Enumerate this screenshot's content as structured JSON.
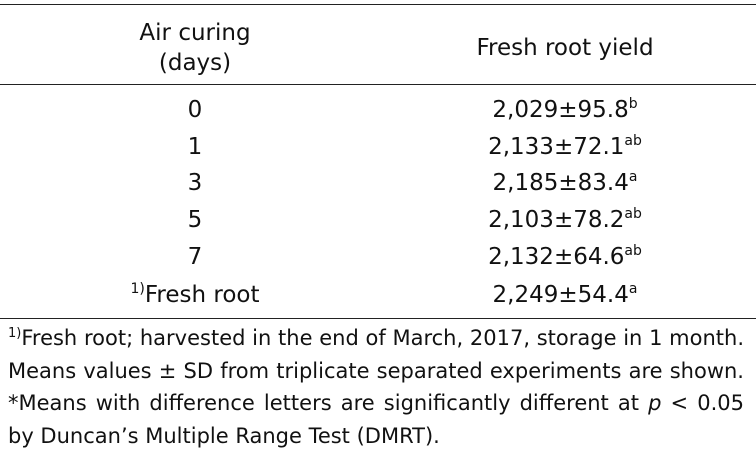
{
  "table": {
    "header": [
      [
        "Air curing",
        "(days)"
      ],
      [
        "Fresh root yield"
      ]
    ],
    "rows": [
      {
        "label": "0",
        "value": "2,029±95.8",
        "sup": "b"
      },
      {
        "label": "1",
        "value": "2,133±72.1",
        "sup": "ab"
      },
      {
        "label": "3",
        "value": "2,185±83.4",
        "sup": "a"
      },
      {
        "label": "5",
        "value": "2,103±78.2",
        "sup": "ab"
      },
      {
        "label": "7",
        "value": "2,132±64.6",
        "sup": "ab"
      },
      {
        "label_sup": "1)",
        "label": "Fresh root",
        "value": "2,249±54.4",
        "sup": "a"
      }
    ],
    "footnote": {
      "sup": "1)",
      "text": "Fresh root; harvested in the end of March, 2017, storage in 1 month. Means values ± SD from triplicate separated experiments are shown. *Means with difference letters are significantly different at ",
      "italic": "p",
      "rest": " < 0.05 by Duncan’s Multiple Range Test (DMRT)."
    }
  }
}
